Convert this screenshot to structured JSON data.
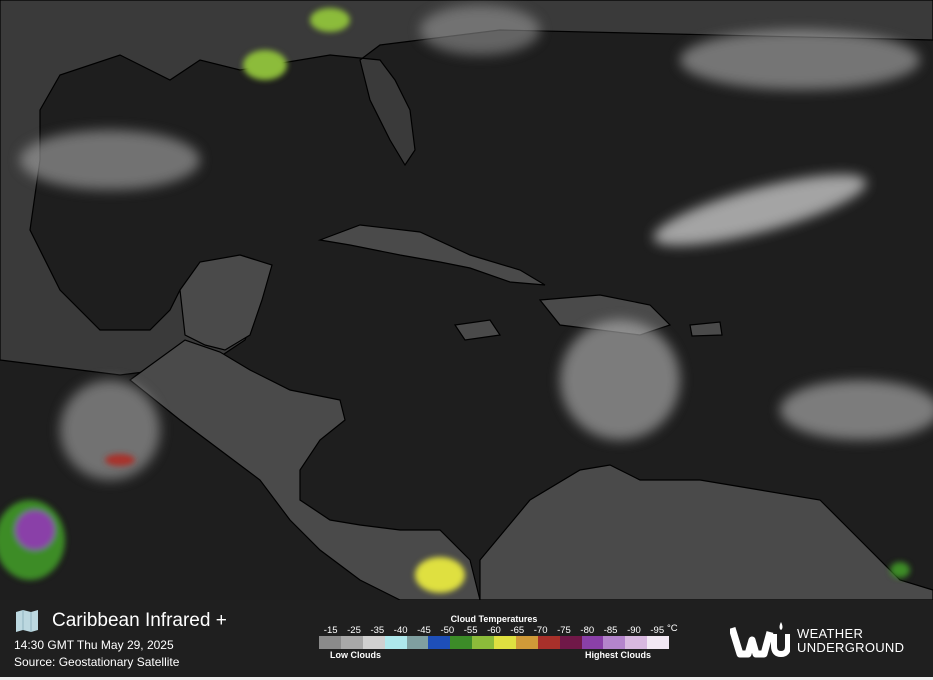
{
  "header": {
    "title": "Caribbean Infrared +",
    "timestamp": "14:30 GMT Thu May 29, 2025",
    "source": "Source: Geostationary Satellite"
  },
  "legend": {
    "title": "Cloud Temperatures",
    "ticks": [
      "-15",
      "-25",
      "-35",
      "-40",
      "-45",
      "-50",
      "-55",
      "-60",
      "-65",
      "-70",
      "-75",
      "-80",
      "-85",
      "-90",
      "-95"
    ],
    "unit": "°C",
    "colors": [
      "#8a8a8a",
      "#a8a8a8",
      "#d0d0d0",
      "#aee8ec",
      "#7f9fa0",
      "#1e4fb8",
      "#3c8c28",
      "#8cbc3a",
      "#dfe040",
      "#d09a38",
      "#a8302a",
      "#701848",
      "#8a40a8",
      "#b484cc",
      "#d8b8e0",
      "#f2e8f4"
    ],
    "low_label": "Low Clouds",
    "high_label": "Highest Clouds"
  },
  "brand": {
    "line1": "WEATHER",
    "line2": "UNDERGROUND",
    "logo_text": "WU"
  }
}
